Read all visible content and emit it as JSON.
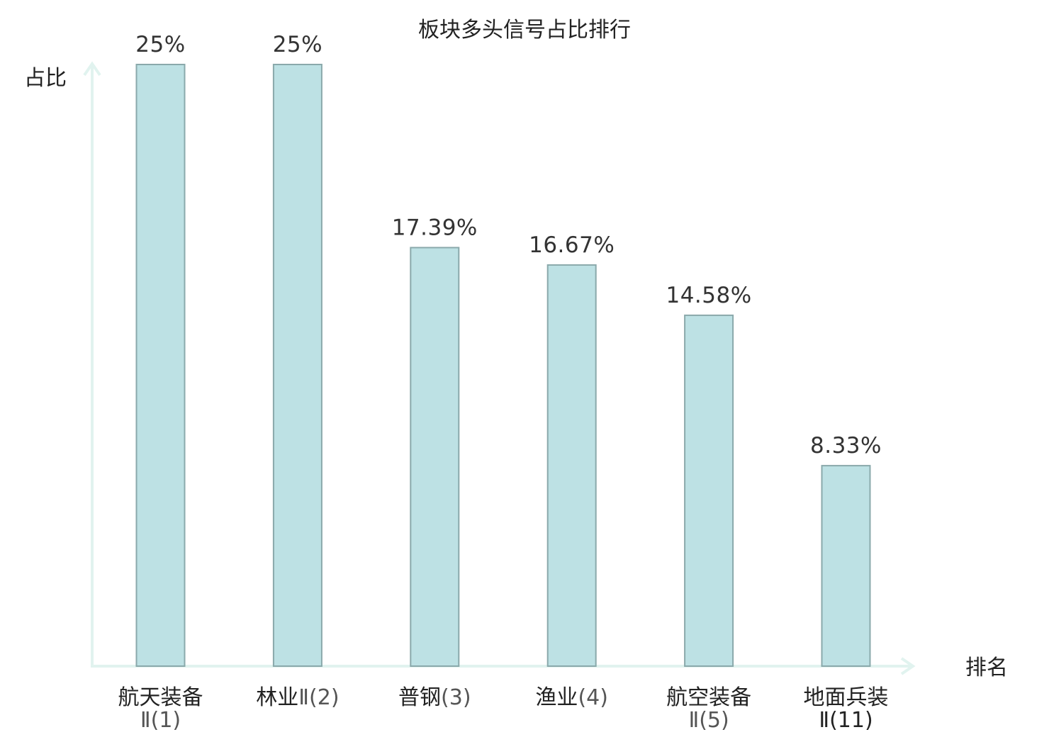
{
  "colors": {
    "bar_fill": "#bde1e4",
    "bar_stroke": "#8aa9ab",
    "axis": "#e1f3ef",
    "highlight": "#e00000"
  },
  "chart_data": {
    "type": "bar",
    "title": "板块多头信号占比排行",
    "ylabel": "占比",
    "xlabel": "排名",
    "ylim": [
      0,
      25
    ],
    "grid": false,
    "legend": "none",
    "categories": [
      {
        "name": "航天装备",
        "suffix": "Ⅱ(1)",
        "label": "航天装备Ⅱ(1)",
        "highlight": false
      },
      {
        "name": "林业",
        "suffix": "Ⅱ(2)",
        "label": "林业Ⅱ(2)",
        "highlight": false
      },
      {
        "name": "普钢",
        "suffix": "(3)",
        "label": "普钢(3)",
        "highlight": false
      },
      {
        "name": "渔业",
        "suffix": "(4)",
        "label": "渔业(4)",
        "highlight": false
      },
      {
        "name": "航空装备",
        "suffix": "Ⅱ(5)",
        "label": "航空装备Ⅱ(5)",
        "highlight": false
      },
      {
        "name": "地面兵装",
        "suffix": "Ⅱ(11)",
        "label": "地面兵装Ⅱ(11)",
        "highlight": true
      }
    ],
    "values": [
      25,
      25,
      17.39,
      16.67,
      14.58,
      8.33
    ],
    "data_labels": [
      "25%",
      "25%",
      "17.39%",
      "16.67%",
      "14.58%",
      "8.33%"
    ]
  }
}
